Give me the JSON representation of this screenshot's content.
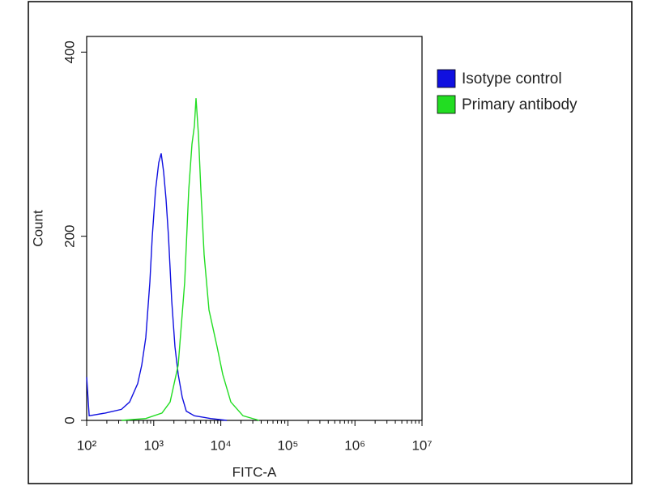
{
  "chart_data": {
    "type": "line",
    "xlabel": "FITC-A",
    "ylabel": "Count",
    "xscale": "log",
    "xlim": [
      100,
      10000000
    ],
    "xticks": [
      {
        "value": 100,
        "label": "10²"
      },
      {
        "value": 1000,
        "label": "10³"
      },
      {
        "value": 10000,
        "label": "10⁴"
      },
      {
        "value": 100000,
        "label": "10⁵"
      },
      {
        "value": 1000000,
        "label": "10⁶"
      },
      {
        "value": 10000000,
        "label": "10⁷"
      }
    ],
    "ylim": [
      0,
      417
    ],
    "yticks": [
      0,
      200,
      400
    ],
    "series": [
      {
        "name": "Isotype control",
        "color": "#1010e0",
        "x": [
          100,
          109,
          190,
          330,
          437,
          577,
          662,
          762,
          875,
          951,
          1064,
          1189,
          1291,
          1403,
          1527,
          1660,
          1854,
          2072,
          2317,
          2661,
          3060,
          4036,
          7046,
          12280
        ],
        "values": [
          47,
          5,
          8,
          12,
          20,
          40,
          60,
          90,
          150,
          200,
          250,
          280,
          290,
          270,
          240,
          200,
          130,
          80,
          50,
          25,
          10,
          5,
          2,
          0
        ]
      },
      {
        "name": "Primary antibody",
        "color": "#22dd22",
        "x": [
          330,
          762,
          1327,
          1754,
          2317,
          2891,
          3325,
          3715,
          4036,
          4266,
          4643,
          5047,
          5637,
          6668,
          7656,
          8790,
          10690,
          14130,
          21430,
          37330
        ],
        "values": [
          0,
          2,
          8,
          20,
          60,
          150,
          250,
          300,
          320,
          350,
          310,
          250,
          180,
          120,
          100,
          80,
          50,
          20,
          5,
          0
        ]
      }
    ]
  }
}
